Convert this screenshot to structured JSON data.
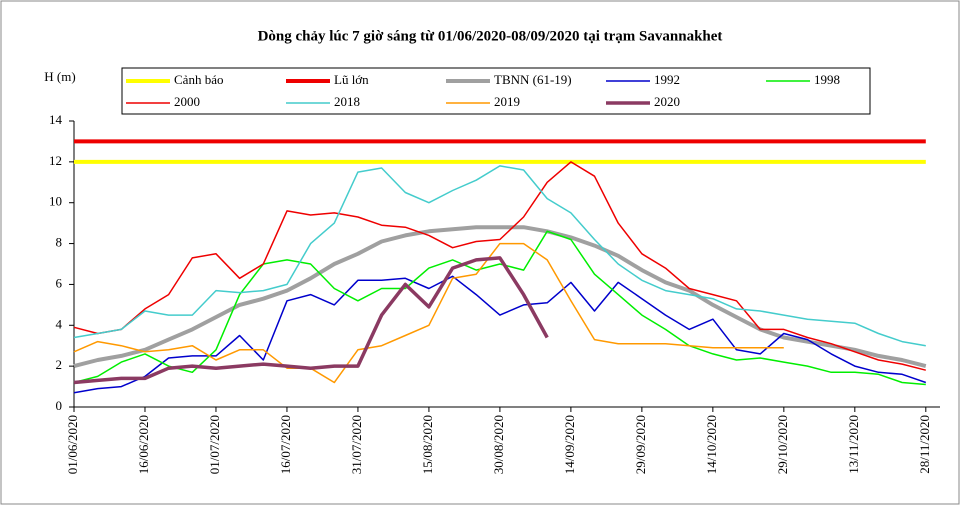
{
  "chart_data": {
    "type": "line",
    "title": "Dòng chảy lúc 7 giờ sáng từ 01/06/2020-08/09/2020 tại trạm Savannakhet",
    "y_label": "H (m)",
    "x": [
      "01/06/2020",
      "06/06/2020",
      "11/06/2020",
      "16/06/2020",
      "21/06/2020",
      "26/06/2020",
      "01/07/2020",
      "06/07/2020",
      "11/07/2020",
      "16/07/2020",
      "21/07/2020",
      "26/07/2020",
      "31/07/2020",
      "05/08/2020",
      "10/08/2020",
      "15/08/2020",
      "20/08/2020",
      "25/08/2020",
      "30/08/2020",
      "04/09/2020",
      "09/09/2020",
      "14/09/2020",
      "19/09/2020",
      "24/09/2020",
      "29/09/2020",
      "04/10/2020",
      "09/10/2020",
      "14/10/2020",
      "19/10/2020",
      "24/10/2020",
      "29/10/2020",
      "03/11/2020",
      "08/11/2020",
      "13/11/2020",
      "18/11/2020",
      "23/11/2020",
      "28/11/2020"
    ],
    "xlim": [
      "01/06/2020",
      "01/12/2020"
    ],
    "xticks": [
      "01/06/2020",
      "16/06/2020",
      "01/07/2020",
      "16/07/2020",
      "31/07/2020",
      "15/08/2020",
      "30/08/2020",
      "14/09/2020",
      "29/09/2020",
      "14/10/2020",
      "29/10/2020",
      "13/11/2020",
      "28/11/2020"
    ],
    "ylim": [
      0,
      14
    ],
    "yticks": [
      0,
      2,
      4,
      6,
      8,
      10,
      12,
      14
    ],
    "series": [
      {
        "name": "Cảnh báo",
        "color": "#ffff00",
        "line_width": 4,
        "values": [
          12,
          12,
          12,
          12,
          12,
          12,
          12,
          12,
          12,
          12,
          12,
          12,
          12,
          12,
          12,
          12,
          12,
          12,
          12,
          12,
          12,
          12,
          12,
          12,
          12,
          12,
          12,
          12,
          12,
          12,
          12,
          12,
          12,
          12,
          12,
          12,
          12
        ]
      },
      {
        "name": "Lũ lớn",
        "color": "#ee0000",
        "line_width": 4,
        "values": [
          13,
          13,
          13,
          13,
          13,
          13,
          13,
          13,
          13,
          13,
          13,
          13,
          13,
          13,
          13,
          13,
          13,
          13,
          13,
          13,
          13,
          13,
          13,
          13,
          13,
          13,
          13,
          13,
          13,
          13,
          13,
          13,
          13,
          13,
          13,
          13,
          13
        ]
      },
      {
        "name": "TBNN (61-19)",
        "color": "#a0a0a0",
        "line_width": 4,
        "values": [
          2.0,
          2.3,
          2.5,
          2.8,
          3.3,
          3.8,
          4.4,
          5.0,
          5.3,
          5.7,
          6.3,
          7.0,
          7.5,
          8.1,
          8.4,
          8.6,
          8.7,
          8.8,
          8.8,
          8.8,
          8.6,
          8.3,
          7.9,
          7.4,
          6.7,
          6.1,
          5.7,
          5.0,
          4.4,
          3.8,
          3.4,
          3.2,
          3.0,
          2.8,
          2.5,
          2.3,
          2.0
        ]
      },
      {
        "name": "1992",
        "color": "#0000cc",
        "line_width": 1.5,
        "values": [
          0.7,
          0.9,
          1.0,
          1.5,
          2.4,
          2.5,
          2.5,
          3.5,
          2.3,
          5.2,
          5.5,
          5.0,
          6.2,
          6.2,
          6.3,
          5.8,
          6.4,
          5.5,
          4.5,
          5.0,
          5.1,
          6.1,
          4.7,
          6.1,
          5.3,
          4.5,
          3.8,
          4.3,
          2.8,
          2.6,
          3.6,
          3.3,
          2.6,
          2.0,
          1.7,
          1.6,
          1.2
        ]
      },
      {
        "name": "1998",
        "color": "#00ee00",
        "line_width": 1.5,
        "values": [
          1.2,
          1.5,
          2.2,
          2.6,
          2.0,
          1.7,
          2.8,
          5.5,
          7.0,
          7.2,
          7.0,
          5.8,
          5.2,
          5.8,
          5.8,
          6.8,
          7.2,
          6.7,
          7.0,
          6.7,
          8.6,
          8.2,
          6.5,
          5.5,
          4.5,
          3.8,
          3.0,
          2.6,
          2.3,
          2.4,
          2.2,
          2.0,
          1.7,
          1.7,
          1.6,
          1.2,
          1.1
        ]
      },
      {
        "name": "2000",
        "color": "#ee0000",
        "line_width": 1.5,
        "values": [
          3.9,
          3.6,
          3.8,
          4.8,
          5.5,
          7.3,
          7.5,
          6.3,
          7.0,
          9.6,
          9.4,
          9.5,
          9.3,
          8.9,
          8.8,
          8.4,
          7.8,
          8.1,
          8.2,
          9.3,
          11.0,
          12.0,
          11.3,
          9.0,
          7.5,
          6.8,
          5.8,
          5.5,
          5.2,
          3.8,
          3.8,
          3.4,
          3.1,
          2.7,
          2.3,
          2.1,
          1.8
        ]
      },
      {
        "name": "2018",
        "color": "#44cccc",
        "line_width": 1.5,
        "values": [
          3.4,
          3.6,
          3.8,
          4.7,
          4.5,
          4.5,
          5.7,
          5.6,
          5.7,
          6.0,
          8.0,
          9.0,
          11.5,
          11.7,
          10.5,
          10.0,
          10.6,
          11.1,
          11.8,
          11.6,
          10.2,
          9.5,
          8.2,
          7.0,
          6.2,
          5.7,
          5.5,
          5.3,
          4.8,
          4.7,
          4.5,
          4.3,
          4.2,
          4.1,
          3.6,
          3.2,
          3.0
        ]
      },
      {
        "name": "2019",
        "color": "#ff9900",
        "line_width": 1.5,
        "values": [
          2.7,
          3.2,
          3.0,
          2.7,
          2.8,
          3.0,
          2.3,
          2.8,
          2.8,
          1.9,
          1.9,
          1.2,
          2.8,
          3.0,
          3.5,
          4.0,
          6.3,
          6.5,
          8.0,
          8.0,
          7.2,
          5.2,
          3.3,
          3.1,
          3.1,
          3.1,
          3.0,
          2.9,
          2.9,
          2.9,
          2.9,
          null,
          null,
          null,
          null,
          null,
          null
        ]
      },
      {
        "name": "2020",
        "color": "#8b3a62",
        "line_width": 3.5,
        "values": [
          1.2,
          1.3,
          1.4,
          1.4,
          1.9,
          2.0,
          1.9,
          2.0,
          2.1,
          2.0,
          1.9,
          2.0,
          2.0,
          4.5,
          6.0,
          4.9,
          6.8,
          7.2,
          7.3,
          5.5,
          3.4,
          null,
          null,
          null,
          null,
          null,
          null,
          null,
          null,
          null,
          null,
          null,
          null,
          null,
          null,
          null,
          null
        ]
      }
    ]
  }
}
